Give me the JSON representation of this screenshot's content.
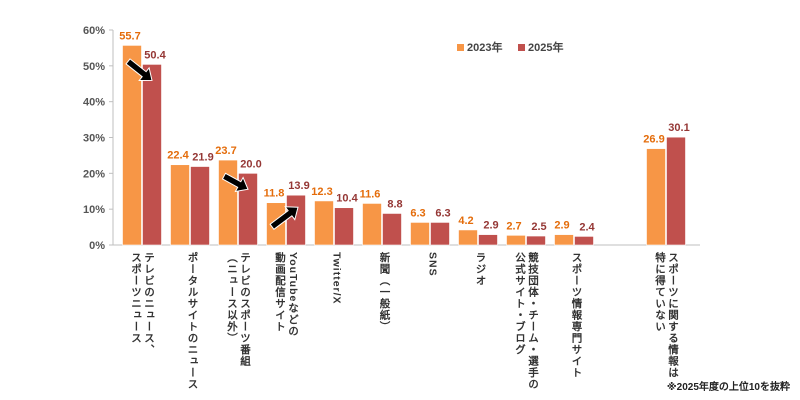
{
  "chart_data": {
    "type": "bar",
    "title": "",
    "xlabel": "",
    "ylabel": "",
    "ylim": [
      0,
      60
    ],
    "yticks": [
      "0%",
      "10%",
      "20%",
      "30%",
      "40%",
      "50%",
      "60%"
    ],
    "grid": false,
    "legend_position": "top-right",
    "categories": [
      "テレビのニュース、\nスポーツニュース",
      "ポータルサイトのニュース",
      "テレビのスポーツ番組\n（ニュース以外）",
      "YouTubeなどの\n動画配信サイト",
      "Twitter/X",
      "新聞（一般紙）",
      "SNS",
      "ラジオ",
      "競技団体・チーム・選手の\n公式サイト・ブログ",
      "スポーツ情報専門サイト",
      "スポーツに関する情報は\n特に得ていない"
    ],
    "series": [
      {
        "name": "2023年",
        "color": "#F79646",
        "label_color": "#E46C0A",
        "values": [
          55.7,
          22.4,
          23.7,
          11.8,
          12.3,
          11.6,
          6.3,
          4.2,
          2.7,
          2.9,
          26.9
        ]
      },
      {
        "name": "2025年",
        "color": "#C0504D",
        "label_color": "#953735",
        "values": [
          50.4,
          21.9,
          20.0,
          13.9,
          10.4,
          8.8,
          6.3,
          2.9,
          2.5,
          2.4,
          30.1
        ]
      }
    ],
    "annotations": [
      {
        "type": "arrow",
        "direction": "down",
        "category_index": 0
      },
      {
        "type": "arrow",
        "direction": "down",
        "category_index": 2
      },
      {
        "type": "arrow",
        "direction": "up",
        "category_index": 3
      }
    ],
    "footnote": "※2025年度の上位10を抜粋"
  }
}
